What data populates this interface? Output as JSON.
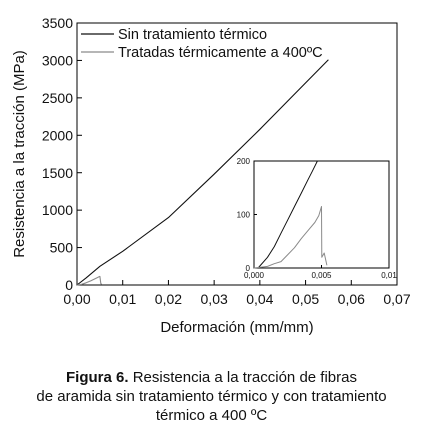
{
  "chart_data": [
    {
      "type": "line",
      "xlabel": "Deformación (mm/mm)",
      "ylabel": "Resistencia a la tracción (MPa)",
      "xlim": [
        0,
        0.07
      ],
      "ylim": [
        0,
        3500
      ],
      "xticks": [
        "0,00",
        "0,01",
        "0,02",
        "0,03",
        "0,04",
        "0,05",
        "0,06",
        "0,07"
      ],
      "yticks": [
        "0",
        "500",
        "1000",
        "1500",
        "2000",
        "2500",
        "3000",
        "3500"
      ],
      "legend_position": "top-left",
      "series": [
        {
          "name": "Sin tratamiento térmico",
          "color": "#111111",
          "x": [
            0,
            0.002,
            0.005,
            0.01,
            0.02,
            0.03,
            0.04,
            0.05,
            0.055
          ],
          "y": [
            0,
            95,
            250,
            450,
            900,
            1480,
            2080,
            2700,
            3010
          ]
        },
        {
          "name": "Tratadas térmicamente a 400ºC",
          "color": "#8a8a8a",
          "x": [
            0,
            0.001,
            0.002,
            0.003,
            0.004,
            0.0045,
            0.0048,
            0.005,
            0.0052,
            0.0054
          ],
          "y": [
            0,
            10,
            30,
            55,
            85,
            100,
            110,
            115,
            20,
            8
          ]
        }
      ]
    },
    {
      "type": "line",
      "inset": true,
      "xlim": [
        0,
        0.01
      ],
      "ylim": [
        0,
        200
      ],
      "xticks": [
        "0,000",
        "0,005",
        "0,01"
      ],
      "yticks": [
        "0",
        "100",
        "200"
      ],
      "series": [
        {
          "name": "Sin tratamiento térmico",
          "color": "#111111",
          "x": [
            0.0003,
            0.001,
            0.0015,
            0.002,
            0.0025,
            0.003,
            0.0035,
            0.004,
            0.0043,
            0.0047
          ],
          "y": [
            0,
            20,
            40,
            65,
            90,
            115,
            140,
            165,
            180,
            200
          ]
        },
        {
          "name": "Tratadas térmicamente a 400ºC",
          "color": "#8a8a8a",
          "x": [
            0,
            0.001,
            0.0015,
            0.002,
            0.0025,
            0.003,
            0.0035,
            0.004,
            0.0045,
            0.0048,
            0.005,
            0.00502,
            0.0052,
            0.0054
          ],
          "y": [
            0,
            3,
            8,
            12,
            25,
            38,
            55,
            70,
            85,
            98,
            115,
            20,
            28,
            5
          ]
        }
      ]
    }
  ],
  "caption": {
    "label": "Figura 6.",
    "line1": "Resistencia a la tracción de fibras",
    "line2": "de aramida sin tratamiento térmico y con tratamiento",
    "line3": "térmico a 400 ºC"
  }
}
